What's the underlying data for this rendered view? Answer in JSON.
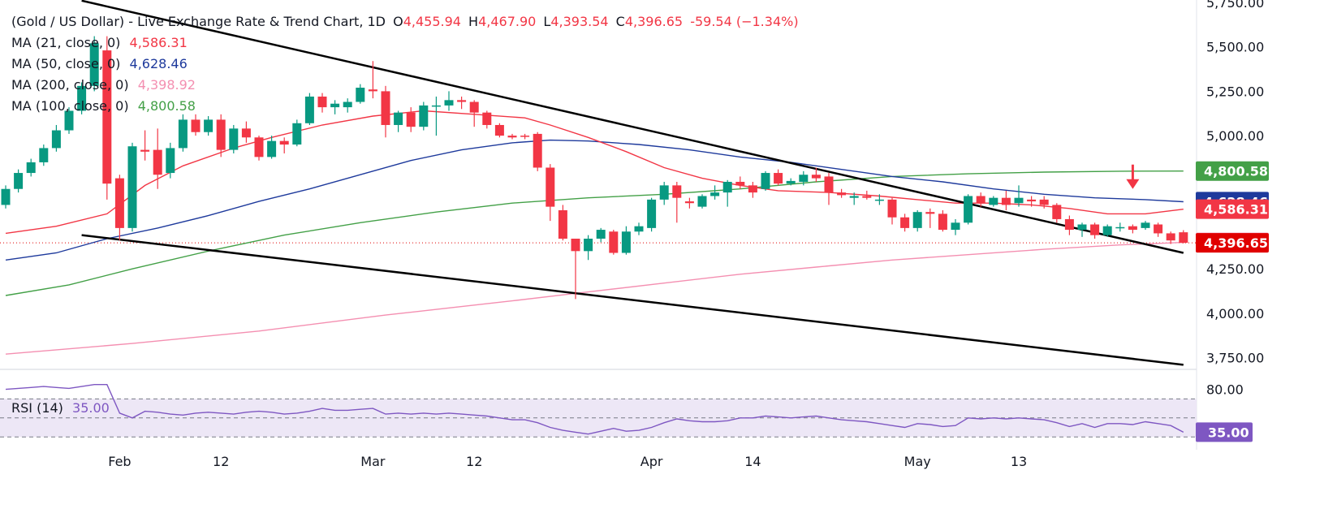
{
  "legend": {
    "title": "(Gold / US Dollar) - Live Exchange Rate & Trend Chart, 1D",
    "o_label": "O",
    "o_value": "4,455.94",
    "h_label": "H",
    "h_value": "4,467.90",
    "l_label": "L",
    "l_value": "4,393.54",
    "c_label": "C",
    "c_value": "4,396.65",
    "change": "-59.54 (−1.34%)",
    "ma": [
      {
        "label": "MA (21, close, 0)",
        "value": "4,586.31",
        "color": "#f23645"
      },
      {
        "label": "MA (50, close, 0)",
        "value": "4,628.46",
        "color": "#1e3a9c"
      },
      {
        "label": "MA (200, close, 0)",
        "value": "4,398.92",
        "color": "#f48fb1"
      },
      {
        "label": "MA (100, close, 0)",
        "value": "4,800.58",
        "color": "#43a047"
      }
    ]
  },
  "rsi": {
    "label": "RSI (14)",
    "value": "35.00",
    "color": "#7e57c2"
  },
  "colors": {
    "up": "#089981",
    "down": "#f23645",
    "trendline": "#000000",
    "rsi_band": "#ede7f6"
  },
  "chart_data": {
    "type": "candlestick",
    "symbol": "Gold / US Dollar",
    "timeframe": "1D",
    "y_ticks": [
      "5,750.00",
      "5,500.00",
      "5,250.00",
      "5,000.00",
      "4,250.00",
      "4,000.00",
      "3,750.00"
    ],
    "ylim": [
      3750,
      5750
    ],
    "x_labels": [
      {
        "label": "Feb",
        "idx": 9
      },
      {
        "label": "12",
        "idx": 17
      },
      {
        "label": "Mar",
        "idx": 29
      },
      {
        "label": "12",
        "idx": 37
      },
      {
        "label": "Apr",
        "idx": 51
      },
      {
        "label": "14",
        "idx": 59
      },
      {
        "label": "May",
        "idx": 72
      },
      {
        "label": "13",
        "idx": 80
      }
    ],
    "last_price": 4396.65,
    "price_badges": [
      {
        "value": "4,800.58",
        "price": 4800.58,
        "color": "#43a047",
        "text_color": "#ffffff"
      },
      {
        "value": "4,628.46",
        "price": 4628.46,
        "color": "#1e3a9c",
        "text_color": "#ffffff"
      },
      {
        "value": "4,586.31",
        "price": 4586.31,
        "color": "#f23645",
        "text_color": "#ffffff"
      },
      {
        "value": "4,398.92",
        "price": 4398.92,
        "color": "#f48fb1",
        "text_color": "#131722"
      },
      {
        "value": "4,396.65",
        "price": 4396.65,
        "color": "#e00000",
        "text_color": "#ffffff"
      }
    ],
    "candles": [
      [
        4610,
        4720,
        4590,
        4700
      ],
      [
        4700,
        4810,
        4680,
        4790
      ],
      [
        4790,
        4870,
        4770,
        4850
      ],
      [
        4850,
        4950,
        4830,
        4930
      ],
      [
        4930,
        5060,
        4910,
        5030
      ],
      [
        5030,
        5160,
        5010,
        5140
      ],
      [
        5140,
        5300,
        5120,
        5280
      ],
      [
        5280,
        5560,
        5250,
        5520
      ],
      [
        5480,
        5560,
        4640,
        4730
      ],
      [
        4760,
        4780,
        4410,
        4480
      ],
      [
        4480,
        4960,
        4460,
        4940
      ],
      [
        4920,
        5030,
        4860,
        4910
      ],
      [
        4920,
        5040,
        4700,
        4780
      ],
      [
        4790,
        4960,
        4760,
        4930
      ],
      [
        4930,
        5120,
        4910,
        5090
      ],
      [
        5090,
        5120,
        5000,
        5020
      ],
      [
        5020,
        5110,
        5000,
        5090
      ],
      [
        5090,
        5120,
        4880,
        4920
      ],
      [
        4920,
        5060,
        4900,
        5040
      ],
      [
        5040,
        5080,
        4960,
        4990
      ],
      [
        4990,
        5000,
        4860,
        4880
      ],
      [
        4880,
        5000,
        4870,
        4970
      ],
      [
        4970,
        4990,
        4900,
        4950
      ],
      [
        4950,
        5090,
        4940,
        5070
      ],
      [
        5070,
        5240,
        5060,
        5220
      ],
      [
        5220,
        5240,
        5130,
        5160
      ],
      [
        5160,
        5200,
        5120,
        5180
      ],
      [
        5160,
        5210,
        5130,
        5190
      ],
      [
        5190,
        5290,
        5180,
        5270
      ],
      [
        5260,
        5420,
        5210,
        5250
      ],
      [
        5250,
        5280,
        4990,
        5060
      ],
      [
        5060,
        5140,
        5020,
        5130
      ],
      [
        5130,
        5160,
        5020,
        5050
      ],
      [
        5050,
        5190,
        5030,
        5170
      ],
      [
        5170,
        5220,
        5000,
        5170
      ],
      [
        5170,
        5250,
        5140,
        5200
      ],
      [
        5200,
        5220,
        5150,
        5190
      ],
      [
        5190,
        5200,
        5050,
        5130
      ],
      [
        5130,
        5140,
        5040,
        5060
      ],
      [
        5060,
        5070,
        4990,
        5000
      ],
      [
        5000,
        5010,
        4980,
        4990
      ],
      [
        5000,
        5010,
        4980,
        4995
      ],
      [
        5010,
        5020,
        4800,
        4820
      ],
      [
        4820,
        4840,
        4520,
        4600
      ],
      [
        4580,
        4610,
        4410,
        4420
      ],
      [
        4420,
        4420,
        4080,
        4350
      ],
      [
        4350,
        4440,
        4300,
        4420
      ],
      [
        4420,
        4480,
        4400,
        4470
      ],
      [
        4460,
        4470,
        4330,
        4340
      ],
      [
        4340,
        4490,
        4330,
        4460
      ],
      [
        4460,
        4510,
        4440,
        4490
      ],
      [
        4480,
        4650,
        4460,
        4640
      ],
      [
        4640,
        4740,
        4610,
        4720
      ],
      [
        4720,
        4740,
        4510,
        4650
      ],
      [
        4630,
        4650,
        4590,
        4620
      ],
      [
        4600,
        4670,
        4590,
        4660
      ],
      [
        4660,
        4720,
        4640,
        4680
      ],
      [
        4680,
        4750,
        4600,
        4740
      ],
      [
        4740,
        4770,
        4700,
        4720
      ],
      [
        4720,
        4740,
        4650,
        4680
      ],
      [
        4700,
        4800,
        4690,
        4790
      ],
      [
        4790,
        4810,
        4720,
        4730
      ],
      [
        4730,
        4760,
        4720,
        4745
      ],
      [
        4740,
        4800,
        4720,
        4780
      ],
      [
        4780,
        4820,
        4740,
        4760
      ],
      [
        4770,
        4790,
        4610,
        4680
      ],
      [
        4680,
        4700,
        4650,
        4665
      ],
      [
        4650,
        4680,
        4610,
        4660
      ],
      [
        4660,
        4690,
        4640,
        4650
      ],
      [
        4640,
        4670,
        4610,
        4640
      ],
      [
        4640,
        4650,
        4500,
        4540
      ],
      [
        4540,
        4560,
        4460,
        4480
      ],
      [
        4480,
        4580,
        4460,
        4570
      ],
      [
        4570,
        4590,
        4480,
        4560
      ],
      [
        4560,
        4580,
        4460,
        4470
      ],
      [
        4470,
        4530,
        4440,
        4510
      ],
      [
        4510,
        4670,
        4500,
        4660
      ],
      [
        4660,
        4680,
        4600,
        4620
      ],
      [
        4610,
        4660,
        4600,
        4650
      ],
      [
        4650,
        4690,
        4580,
        4610
      ],
      [
        4620,
        4720,
        4600,
        4650
      ],
      [
        4640,
        4660,
        4600,
        4630
      ],
      [
        4640,
        4660,
        4590,
        4610
      ],
      [
        4610,
        4620,
        4510,
        4530
      ],
      [
        4530,
        4550,
        4440,
        4470
      ],
      [
        4470,
        4510,
        4430,
        4500
      ],
      [
        4500,
        4510,
        4420,
        4440
      ],
      [
        4440,
        4500,
        4430,
        4490
      ],
      [
        4480,
        4510,
        4460,
        4485
      ],
      [
        4490,
        4500,
        4450,
        4470
      ],
      [
        4480,
        4520,
        4470,
        4510
      ],
      [
        4500,
        4510,
        4430,
        4450
      ],
      [
        4450,
        4460,
        4390,
        4410
      ],
      [
        4455.94,
        4467.9,
        4393.54,
        4396.65
      ]
    ],
    "ma21": [
      [
        0,
        4450
      ],
      [
        4,
        4490
      ],
      [
        8,
        4560
      ],
      [
        11,
        4720
      ],
      [
        14,
        4830
      ],
      [
        18,
        4930
      ],
      [
        21,
        4990
      ],
      [
        25,
        5060
      ],
      [
        29,
        5110
      ],
      [
        33,
        5140
      ],
      [
        37,
        5120
      ],
      [
        41,
        5100
      ],
      [
        43,
        5060
      ],
      [
        46,
        4990
      ],
      [
        49,
        4910
      ],
      [
        52,
        4820
      ],
      [
        55,
        4760
      ],
      [
        58,
        4720
      ],
      [
        61,
        4690
      ],
      [
        65,
        4680
      ],
      [
        69,
        4660
      ],
      [
        72,
        4640
      ],
      [
        75,
        4620
      ],
      [
        78,
        4620
      ],
      [
        81,
        4610
      ],
      [
        84,
        4590
      ],
      [
        87,
        4560
      ],
      [
        90,
        4560
      ],
      [
        93,
        4586
      ]
    ],
    "ma50": [
      [
        0,
        4300
      ],
      [
        4,
        4340
      ],
      [
        8,
        4420
      ],
      [
        12,
        4480
      ],
      [
        16,
        4550
      ],
      [
        20,
        4630
      ],
      [
        24,
        4700
      ],
      [
        28,
        4780
      ],
      [
        32,
        4860
      ],
      [
        36,
        4920
      ],
      [
        40,
        4960
      ],
      [
        43,
        4975
      ],
      [
        46,
        4970
      ],
      [
        50,
        4950
      ],
      [
        54,
        4920
      ],
      [
        58,
        4880
      ],
      [
        62,
        4850
      ],
      [
        66,
        4810
      ],
      [
        70,
        4770
      ],
      [
        74,
        4740
      ],
      [
        78,
        4700
      ],
      [
        82,
        4670
      ],
      [
        86,
        4650
      ],
      [
        90,
        4640
      ],
      [
        93,
        4628
      ]
    ],
    "ma100": [
      [
        0,
        4100
      ],
      [
        5,
        4160
      ],
      [
        10,
        4250
      ],
      [
        16,
        4350
      ],
      [
        22,
        4440
      ],
      [
        28,
        4510
      ],
      [
        34,
        4570
      ],
      [
        40,
        4620
      ],
      [
        46,
        4650
      ],
      [
        52,
        4670
      ],
      [
        58,
        4700
      ],
      [
        64,
        4740
      ],
      [
        70,
        4770
      ],
      [
        76,
        4785
      ],
      [
        82,
        4795
      ],
      [
        88,
        4800
      ],
      [
        93,
        4800.58
      ]
    ],
    "ma200": [
      [
        0,
        3770
      ],
      [
        10,
        3830
      ],
      [
        20,
        3900
      ],
      [
        30,
        3990
      ],
      [
        40,
        4070
      ],
      [
        46,
        4120
      ],
      [
        52,
        4170
      ],
      [
        58,
        4220
      ],
      [
        64,
        4260
      ],
      [
        70,
        4300
      ],
      [
        76,
        4330
      ],
      [
        82,
        4360
      ],
      [
        88,
        4385
      ],
      [
        93,
        4398.92
      ]
    ],
    "trendlines": [
      {
        "p1": [
          6,
          5760
        ],
        "p2": [
          93,
          4340
        ]
      },
      {
        "p1": [
          6,
          4440
        ],
        "p2": [
          93,
          3710
        ]
      }
    ],
    "signal_arrow": {
      "idx": 89,
      "price": 4700,
      "color": "#f23645"
    },
    "rsi": {
      "ylim": [
        20,
        95
      ],
      "levels": [
        70,
        50,
        30
      ],
      "tick": "80.00",
      "value_badge": "35.00",
      "values": [
        80,
        81,
        82,
        83,
        82,
        81,
        83,
        85,
        85,
        55,
        50,
        57,
        56,
        54,
        53,
        55,
        56,
        55,
        54,
        56,
        57,
        56,
        54,
        55,
        57,
        60,
        58,
        58,
        59,
        60,
        54,
        55,
        54,
        55,
        54,
        55,
        54,
        53,
        52,
        50,
        48,
        48,
        45,
        40,
        37,
        35,
        33,
        36,
        39,
        36,
        37,
        40,
        45,
        49,
        47,
        46,
        46,
        47,
        50,
        50,
        52,
        51,
        50,
        51,
        52,
        50,
        48,
        47,
        46,
        44,
        42,
        40,
        44,
        43,
        41,
        42,
        50,
        49,
        50,
        49,
        50,
        49,
        48,
        45,
        41,
        44,
        40,
        44,
        44,
        43,
        46,
        44,
        42,
        35
      ]
    }
  }
}
